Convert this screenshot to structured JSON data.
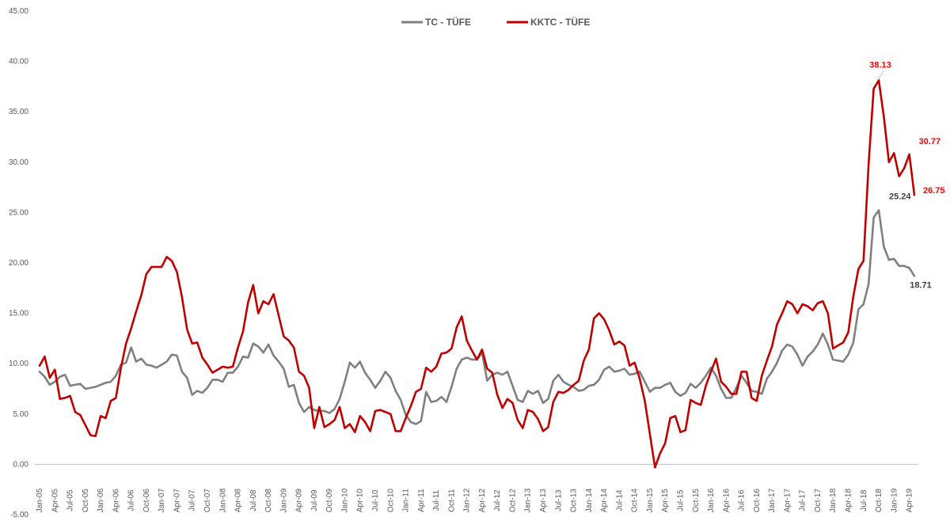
{
  "chart_data": {
    "type": "line",
    "ylim": [
      -5,
      45
    ],
    "yticks": [
      "-5.00",
      "0.00",
      "5.00",
      "10.00",
      "15.00",
      "20.00",
      "25.00",
      "30.00",
      "35.00",
      "40.00",
      "45.00"
    ],
    "ytick_values": [
      -5,
      0,
      5,
      10,
      15,
      20,
      25,
      30,
      35,
      40,
      45
    ],
    "x": [
      "Jan-05",
      "Feb-05",
      "Mar-05",
      "Apr-05",
      "May-05",
      "Jun-05",
      "Jul-05",
      "Aug-05",
      "Sep-05",
      "Oct-05",
      "Nov-05",
      "Dec-05",
      "Jan-06",
      "Feb-06",
      "Mar-06",
      "Apr-06",
      "May-06",
      "Jun-06",
      "Jul-06",
      "Aug-06",
      "Sep-06",
      "Oct-06",
      "Nov-06",
      "Dec-06",
      "Jan-07",
      "Feb-07",
      "Mar-07",
      "Apr-07",
      "May-07",
      "Jun-07",
      "Jul-07",
      "Aug-07",
      "Sep-07",
      "Oct-07",
      "Nov-07",
      "Dec-07",
      "Jan-08",
      "Feb-08",
      "Mar-08",
      "Apr-08",
      "May-08",
      "Jun-08",
      "Jul-08",
      "Aug-08",
      "Sep-08",
      "Oct-08",
      "Nov-08",
      "Dec-08",
      "Jan-09",
      "Feb-09",
      "Mar-09",
      "Apr-09",
      "May-09",
      "Jun-09",
      "Jul-09",
      "Aug-09",
      "Sep-09",
      "Oct-09",
      "Nov-09",
      "Dec-09",
      "Jan-10",
      "Feb-10",
      "Mar-10",
      "Apr-10",
      "May-10",
      "Jun-10",
      "Jul-10",
      "Aug-10",
      "Sep-10",
      "Oct-10",
      "Nov-10",
      "Dec-10",
      "Jan-11",
      "Feb-11",
      "Mar-11",
      "Apr-11",
      "May-11",
      "Jun-11",
      "Jul-11",
      "Aug-11",
      "Sep-11",
      "Oct-11",
      "Nov-11",
      "Dec-11",
      "Jan-12",
      "Feb-12",
      "Mar-12",
      "Apr-12",
      "May-12",
      "Jun-12",
      "Jul-12",
      "Aug-12",
      "Sep-12",
      "Oct-12",
      "Nov-12",
      "Dec-12",
      "Jan-13",
      "Feb-13",
      "Mar-13",
      "Apr-13",
      "May-13",
      "Jun-13",
      "Jul-13",
      "Aug-13",
      "Sep-13",
      "Oct-13",
      "Nov-13",
      "Dec-13",
      "Jan-14",
      "Feb-14",
      "Mar-14",
      "Apr-14",
      "May-14",
      "Jun-14",
      "Jul-14",
      "Aug-14",
      "Sep-14",
      "Oct-14",
      "Nov-14",
      "Dec-14",
      "Jan-15",
      "Feb-15",
      "Mar-15",
      "Apr-15",
      "May-15",
      "Jun-15",
      "Jul-15",
      "Aug-15",
      "Sep-15",
      "Oct-15",
      "Nov-15",
      "Dec-15",
      "Jan-16",
      "Feb-16",
      "Mar-16",
      "Apr-16",
      "May-16",
      "Jun-16",
      "Jul-16",
      "Aug-16",
      "Sep-16",
      "Oct-16",
      "Nov-16",
      "Dec-16",
      "Jan-17",
      "Feb-17",
      "Mar-17",
      "Apr-17",
      "May-17",
      "Jun-17",
      "Jul-17",
      "Aug-17",
      "Sep-17",
      "Oct-17",
      "Nov-17",
      "Dec-17",
      "Jan-18",
      "Feb-18",
      "Mar-18",
      "Apr-18",
      "May-18",
      "Jun-18",
      "Jul-18",
      "Aug-18",
      "Sep-18",
      "Oct-18",
      "Nov-18",
      "Dec-18",
      "Jan-19",
      "Feb-19",
      "Mar-19",
      "Apr-19",
      "May-19"
    ],
    "xtick_every": 3,
    "legend_position": "top-center",
    "grid": false,
    "series": [
      {
        "name": "TC - TÜFE",
        "color": "#808080",
        "values": [
          9.2,
          8.7,
          7.9,
          8.2,
          8.7,
          8.9,
          7.8,
          7.9,
          8.0,
          7.5,
          7.6,
          7.7,
          7.9,
          8.1,
          8.2,
          8.8,
          9.9,
          10.1,
          11.6,
          10.2,
          10.5,
          9.9,
          9.8,
          9.6,
          9.9,
          10.2,
          10.9,
          10.8,
          9.2,
          8.6,
          6.9,
          7.3,
          7.1,
          7.6,
          8.4,
          8.4,
          8.2,
          9.1,
          9.1,
          9.7,
          10.7,
          10.6,
          12.0,
          11.7,
          11.1,
          11.9,
          10.8,
          10.2,
          9.5,
          7.7,
          7.9,
          6.1,
          5.2,
          5.7,
          5.4,
          5.3,
          5.3,
          5.1,
          5.5,
          6.5,
          8.2,
          10.1,
          9.6,
          10.2,
          9.1,
          8.4,
          7.6,
          8.3,
          9.2,
          8.6,
          7.3,
          6.4,
          4.9,
          4.2,
          4.0,
          4.3,
          7.2,
          6.2,
          6.3,
          6.7,
          6.2,
          7.7,
          9.5,
          10.4,
          10.6,
          10.4,
          10.4,
          11.1,
          8.3,
          8.9,
          9.1,
          8.9,
          9.2,
          7.8,
          6.4,
          6.2,
          7.3,
          7.0,
          7.3,
          6.1,
          6.5,
          8.3,
          8.9,
          8.2,
          7.9,
          7.7,
          7.3,
          7.4,
          7.8,
          7.9,
          8.4,
          9.4,
          9.7,
          9.2,
          9.3,
          9.5,
          8.9,
          9.0,
          9.2,
          8.2,
          7.2,
          7.6,
          7.6,
          7.9,
          8.1,
          7.2,
          6.8,
          7.1,
          8.0,
          7.6,
          8.1,
          8.8,
          9.6,
          8.8,
          7.5,
          6.6,
          6.6,
          7.6,
          8.8,
          8.1,
          7.3,
          7.2,
          7.0,
          8.5,
          9.2,
          10.1,
          11.3,
          11.9,
          11.7,
          10.9,
          9.8,
          10.7,
          11.2,
          11.9,
          13.0,
          11.9,
          10.4,
          10.3,
          10.2,
          10.9,
          12.1,
          15.4,
          15.9,
          17.9,
          24.5,
          25.24,
          21.6,
          20.3,
          20.4,
          19.7,
          19.7,
          19.5,
          18.71
        ]
      },
      {
        "name": "KKTC - TÜFE",
        "color": "#c00000",
        "values": [
          9.8,
          10.7,
          8.6,
          9.4,
          6.5,
          6.6,
          6.8,
          5.2,
          4.9,
          3.9,
          2.9,
          2.8,
          4.8,
          4.6,
          6.3,
          6.6,
          9.6,
          12.0,
          13.5,
          15.2,
          16.8,
          18.9,
          19.6,
          19.6,
          19.6,
          20.6,
          20.2,
          19.1,
          16.6,
          13.4,
          12.0,
          12.1,
          10.6,
          9.9,
          9.1,
          9.4,
          9.7,
          9.6,
          9.7,
          11.6,
          13.2,
          16.1,
          17.8,
          15.0,
          16.2,
          15.9,
          16.9,
          14.8,
          12.7,
          12.3,
          11.6,
          9.2,
          8.8,
          7.6,
          3.6,
          5.7,
          3.7,
          4.0,
          4.4,
          5.7,
          3.6,
          4.0,
          3.2,
          4.8,
          4.2,
          3.3,
          5.3,
          5.4,
          5.2,
          5.0,
          3.3,
          3.3,
          4.6,
          5.8,
          7.2,
          7.5,
          9.6,
          9.2,
          9.7,
          11.0,
          11.1,
          11.5,
          13.6,
          14.7,
          12.3,
          11.3,
          10.4,
          11.4,
          9.5,
          9.1,
          6.9,
          5.6,
          6.5,
          6.1,
          4.4,
          3.6,
          5.4,
          5.2,
          4.5,
          3.3,
          3.7,
          6.2,
          7.2,
          7.1,
          7.4,
          7.9,
          8.3,
          10.3,
          11.4,
          14.5,
          15.0,
          14.4,
          13.3,
          11.9,
          12.2,
          11.8,
          9.8,
          10.1,
          8.5,
          6.3,
          3.0,
          -0.3,
          1.1,
          2.1,
          4.6,
          4.8,
          3.2,
          3.4,
          6.4,
          6.1,
          5.9,
          7.8,
          9.2,
          10.5,
          8.2,
          7.7,
          7.0,
          7.0,
          9.2,
          9.2,
          6.6,
          6.3,
          8.8,
          10.3,
          11.7,
          13.9,
          15.0,
          16.2,
          15.9,
          15.0,
          15.9,
          15.7,
          15.3,
          16.0,
          16.2,
          15.0,
          11.5,
          11.8,
          12.1,
          13.1,
          16.7,
          19.4,
          20.2,
          29.8,
          37.3,
          38.13,
          34.5,
          30.0,
          30.9,
          28.6,
          29.4,
          30.77,
          26.75
        ]
      }
    ],
    "data_labels": [
      {
        "series": 1,
        "index": 165,
        "text": "38.13"
      },
      {
        "series": 1,
        "index": 171,
        "text": "30.77"
      },
      {
        "series": 1,
        "index": 172,
        "text": "26.75"
      },
      {
        "series": 0,
        "index": 165,
        "text": "25.24"
      },
      {
        "series": 0,
        "index": 172,
        "text": "18.71"
      }
    ]
  }
}
